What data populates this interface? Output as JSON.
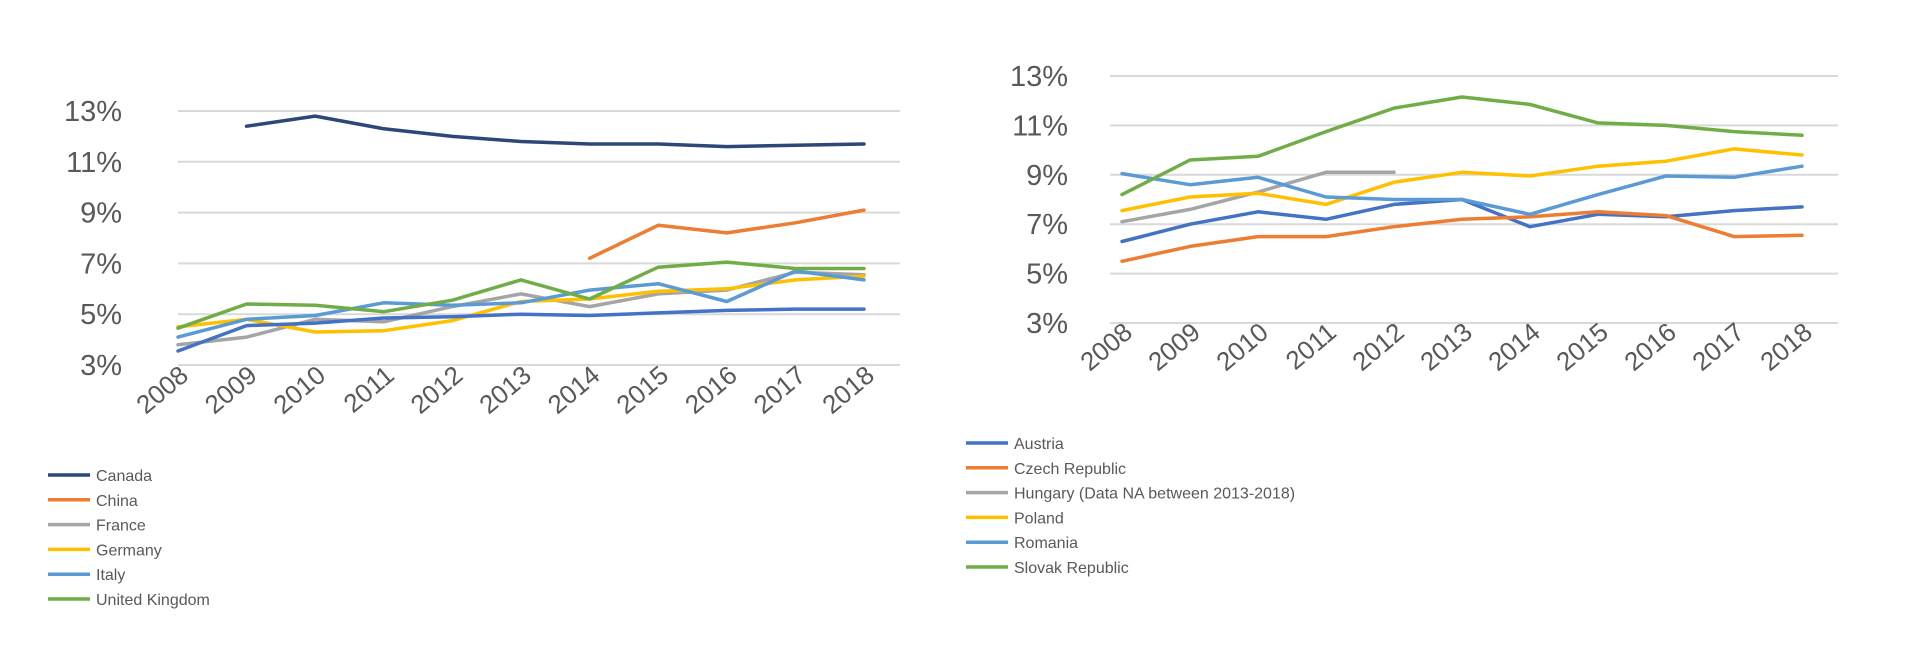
{
  "chart_data": [
    {
      "type": "line",
      "title": "",
      "xlabel": "",
      "ylabel": "",
      "categories": [
        "2008",
        "2009",
        "2010",
        "2011",
        "2012",
        "2013",
        "2014",
        "2015",
        "2016",
        "2017",
        "2018"
      ],
      "y_ticks": [
        3,
        5,
        7,
        9,
        11,
        13
      ],
      "y_tick_labels": [
        "3%",
        "5%",
        "7%",
        "9%",
        "11%",
        "13%"
      ],
      "ylim": [
        3,
        13
      ],
      "grid": true,
      "legend_position": "bottom-left",
      "series": [
        {
          "name": "Canada",
          "color": "#2f4778",
          "values": [
            null,
            12.4,
            12.8,
            12.3,
            12.0,
            11.8,
            11.7,
            11.7,
            11.6,
            11.65,
            11.7
          ]
        },
        {
          "name": "China",
          "color": "#ed7d31",
          "values": [
            null,
            null,
            null,
            null,
            null,
            null,
            7.2,
            8.5,
            8.2,
            8.6,
            9.1
          ]
        },
        {
          "name": "France",
          "color": "#a5a5a5",
          "values": [
            3.8,
            4.1,
            4.8,
            4.7,
            5.3,
            5.8,
            5.3,
            5.8,
            5.95,
            6.65,
            6.55
          ]
        },
        {
          "name": "Germany",
          "color": "#ffc000",
          "values": [
            4.5,
            4.8,
            4.3,
            4.35,
            4.75,
            5.5,
            5.6,
            5.9,
            6.0,
            6.35,
            6.5
          ]
        },
        {
          "name": "Italy",
          "color": "#5b9bd5",
          "values": [
            4.1,
            4.8,
            4.95,
            5.45,
            5.35,
            5.45,
            5.95,
            6.2,
            5.5,
            6.7,
            6.35
          ]
        },
        {
          "name": "United Kingdom",
          "color": "#70ad47",
          "values": [
            4.45,
            5.4,
            5.35,
            5.1,
            5.55,
            6.35,
            5.6,
            6.85,
            7.05,
            6.8,
            6.8
          ]
        },
        {
          "name": "",
          "color": "#4472c4",
          "values": [
            3.55,
            4.55,
            4.65,
            4.85,
            4.9,
            5.0,
            4.95,
            5.05,
            5.15,
            5.2,
            5.2
          ]
        }
      ]
    },
    {
      "type": "line",
      "title": "",
      "xlabel": "",
      "ylabel": "",
      "categories": [
        "2008",
        "2009",
        "2010",
        "2011",
        "2012",
        "2013",
        "2014",
        "2015",
        "2016",
        "2017",
        "2018"
      ],
      "y_ticks": [
        3,
        5,
        7,
        9,
        11,
        13
      ],
      "y_tick_labels": [
        "3%",
        "5%",
        "7%",
        "9%",
        "11%",
        "13%"
      ],
      "ylim": [
        3,
        13
      ],
      "grid": true,
      "legend_position": "bottom-left",
      "series": [
        {
          "name": "Austria",
          "color": "#4472c4",
          "values": [
            6.3,
            7.0,
            7.5,
            7.2,
            7.8,
            8.0,
            6.9,
            7.4,
            7.3,
            7.55,
            7.7
          ]
        },
        {
          "name": "Czech Republic",
          "color": "#ed7d31",
          "values": [
            5.5,
            6.1,
            6.5,
            6.5,
            6.9,
            7.2,
            7.3,
            7.5,
            7.35,
            6.5,
            6.55
          ]
        },
        {
          "name": "Hungary (Data NA between 2013-2018)",
          "color": "#a5a5a5",
          "values": [
            7.1,
            7.6,
            8.3,
            9.1,
            9.1,
            null,
            null,
            null,
            null,
            null,
            null
          ]
        },
        {
          "name": "Poland",
          "color": "#ffc000",
          "values": [
            7.55,
            8.1,
            8.25,
            7.8,
            8.7,
            9.1,
            8.95,
            9.35,
            9.55,
            10.05,
            9.8
          ]
        },
        {
          "name": "Romania",
          "color": "#5b9bd5",
          "values": [
            9.05,
            8.6,
            8.9,
            8.1,
            8.0,
            8.0,
            7.4,
            8.2,
            8.95,
            8.9,
            9.35
          ]
        },
        {
          "name": "Slovak Republic",
          "color": "#70ad47",
          "values": [
            8.2,
            9.6,
            9.75,
            10.75,
            11.7,
            12.15,
            11.85,
            11.1,
            11.0,
            10.75,
            10.6
          ]
        }
      ]
    }
  ]
}
